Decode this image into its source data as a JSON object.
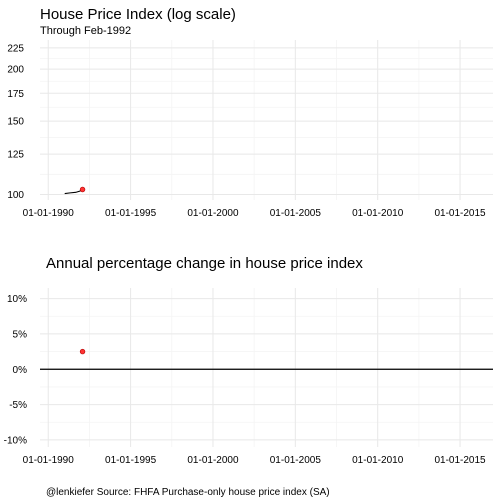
{
  "chart_data": [
    {
      "type": "line",
      "title": "House Price Index (log scale)",
      "subtitle": "Through  Feb-1992",
      "xlabel": "",
      "ylabel": "",
      "x_scale": "date",
      "y_scale": "log",
      "xlim": [
        "1989-07-01",
        "2017-01-01"
      ],
      "ylim": [
        97,
        235
      ],
      "x_ticks": [
        "01-01-1990",
        "01-01-1995",
        "01-01-2000",
        "01-01-2005",
        "01-01-2010",
        "01-01-2015"
      ],
      "y_ticks": [
        100,
        125,
        150,
        175,
        200,
        225
      ],
      "grid": true,
      "series": [
        {
          "points": [
            {
              "x": "1991-01-01",
              "y": 100.5
            },
            {
              "x": "1991-05-01",
              "y": 100.9
            },
            {
              "x": "1991-09-01",
              "y": 101.2
            },
            {
              "x": "1991-12-01",
              "y": 101.9
            },
            {
              "x": "1992-02-01",
              "y": 102.8
            }
          ],
          "line_color": "#000000",
          "marker": {
            "x": "1992-02-01",
            "y": 102.8,
            "color": "#ff3333"
          }
        }
      ]
    },
    {
      "type": "scatter",
      "title": "Annual percentage change in house price index",
      "xlabel": "",
      "ylabel": "",
      "x_scale": "date",
      "xlim": [
        "1989-07-01",
        "2017-01-01"
      ],
      "ylim": [
        -11,
        11.5
      ],
      "x_ticks": [
        "01-01-1990",
        "01-01-1995",
        "01-01-2000",
        "01-01-2005",
        "01-01-2010",
        "01-01-2015"
      ],
      "y_ticks": [
        -10,
        -5,
        0,
        5,
        10
      ],
      "y_tick_labels": [
        "-10%",
        "-5%",
        "0%",
        "5%",
        "10%"
      ],
      "reference_line": 0,
      "grid": true,
      "series": [
        {
          "points": [
            {
              "x": "1992-02-01",
              "y": 2.5
            }
          ],
          "color": "#ff3333"
        }
      ]
    }
  ],
  "caption": "@lenkiefer Source: FHFA Purchase-only house price index (SA)"
}
